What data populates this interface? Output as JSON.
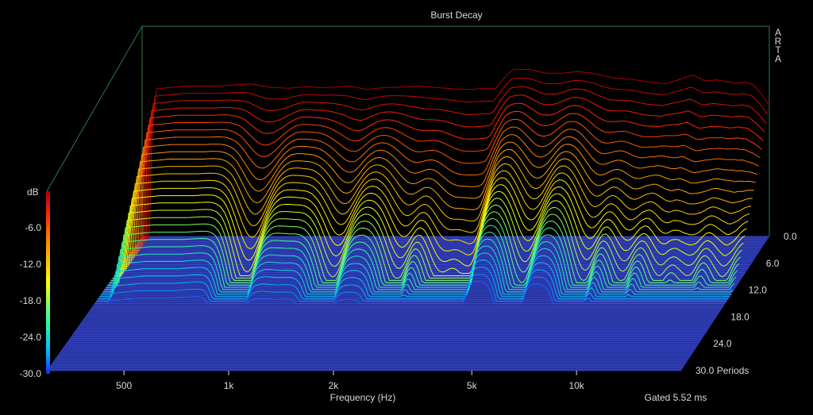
{
  "chart_data": {
    "type": "waterfall",
    "title": "Burst Decay",
    "watermark": "ARTA",
    "xlabel": "Frequency (Hz)",
    "x_scale": "log",
    "x_ticks": [
      "500",
      "1k",
      "2k",
      "5k",
      "10k"
    ],
    "x_tick_values": [
      500,
      1000,
      2000,
      5000,
      10000
    ],
    "xlim": [
      300,
      20000
    ],
    "z_label_unit": "Periods",
    "z_ticks": [
      "0.0",
      "6.0",
      "12.0",
      "18.0",
      "24.0",
      "30.0 Periods"
    ],
    "z_tick_values": [
      0,
      6,
      12,
      18,
      24,
      30
    ],
    "zlim": [
      0,
      30
    ],
    "colorbar": {
      "label": "dB",
      "ticks": [
        "-6.0",
        "-12.0",
        "-18.0",
        "-24.0",
        "-30.0"
      ],
      "tick_values": [
        -6,
        -12,
        -18,
        -24,
        -30
      ],
      "range": [
        -30,
        0
      ]
    },
    "ylim": [
      -30,
      0
    ],
    "note": "Gated 5.52 ms",
    "series_count": 30,
    "first_slice": {
      "freq_hz": [
        300,
        330,
        400,
        500,
        620,
        700,
        800,
        900,
        1000,
        1200,
        1350,
        1500,
        1700,
        1900,
        2100,
        2400,
        2700,
        3000,
        3200,
        3400,
        3600,
        4000,
        4500,
        5000,
        5500,
        6000,
        7000,
        8000,
        9000,
        10000,
        11000,
        12000,
        13000,
        14000,
        15000,
        16000,
        17000,
        18000,
        19000,
        20000
      ],
      "db": [
        -30,
        -3.5,
        -3,
        -3,
        -2.6,
        -3.2,
        -3.4,
        -3.1,
        -3.3,
        -3,
        -3.6,
        -3.3,
        -3.2,
        -3,
        -3.2,
        -3.5,
        -3.6,
        -3.4,
        -3.5,
        -1.4,
        0,
        0,
        -0.7,
        -0.7,
        -0.4,
        -0.6,
        -1.5,
        -1.8,
        -2.3,
        -2.6,
        -1.8,
        -1,
        -2.1,
        -1.9,
        -2.2,
        -2.5,
        -2.3,
        -2.8,
        -4.5,
        -6.5
      ]
    },
    "notches": [
      {
        "freq_hz": 720,
        "depth": 1.0
      },
      {
        "freq_hz": 1300,
        "depth": 0.75
      },
      {
        "freq_hz": 2000,
        "depth": 0.8
      },
      {
        "freq_hz": 2600,
        "depth": 0.9
      },
      {
        "freq_hz": 3150,
        "depth": 1.0
      },
      {
        "freq_hz": 4700,
        "depth": 0.75
      },
      {
        "freq_hz": 7000,
        "depth": 0.8
      },
      {
        "freq_hz": 9000,
        "depth": 0.75
      },
      {
        "freq_hz": 11500,
        "depth": 0.85
      },
      {
        "freq_hz": 14000,
        "depth": 0.8
      },
      {
        "freq_hz": 17500,
        "depth": 0.8
      }
    ],
    "colors": {
      "background": "#000000",
      "frame": "#2f7a45",
      "text": "#d9d9d9",
      "floor": "#3a47c8",
      "colormap": [
        "#2a1fff",
        "#00ccff",
        "#33ff88",
        "#ffff00",
        "#ff9900",
        "#ff2200",
        "#aa0000"
      ]
    }
  }
}
